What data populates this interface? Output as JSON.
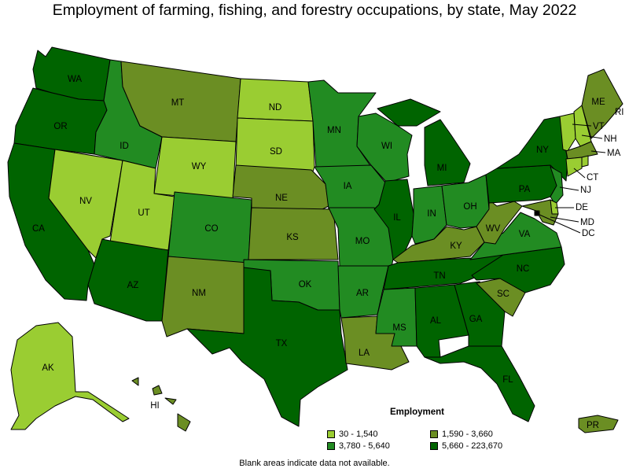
{
  "title": "Employment of farming, fishing, and forestry occupations, by state, May 2022",
  "note": "Blank areas indicate data not available.",
  "legend": {
    "title": "Employment",
    "items": [
      {
        "label": "30 - 1,540",
        "color": "#9acd32"
      },
      {
        "label": "1,590 - 3,660",
        "color": "#6b8e23"
      },
      {
        "label": "3,780 - 5,640",
        "color": "#228b22"
      },
      {
        "label": "5,660 - 223,670",
        "color": "#006400"
      }
    ]
  },
  "states": [
    {
      "abbr": "WA",
      "tier": 3
    },
    {
      "abbr": "OR",
      "tier": 3
    },
    {
      "abbr": "CA",
      "tier": 3
    },
    {
      "abbr": "ID",
      "tier": 2
    },
    {
      "abbr": "NV",
      "tier": 0
    },
    {
      "abbr": "UT",
      "tier": 0
    },
    {
      "abbr": "AZ",
      "tier": 3
    },
    {
      "abbr": "MT",
      "tier": 1
    },
    {
      "abbr": "WY",
      "tier": 0
    },
    {
      "abbr": "CO",
      "tier": 2
    },
    {
      "abbr": "NM",
      "tier": 1
    },
    {
      "abbr": "ND",
      "tier": 0
    },
    {
      "abbr": "SD",
      "tier": 0
    },
    {
      "abbr": "NE",
      "tier": 1
    },
    {
      "abbr": "KS",
      "tier": 1
    },
    {
      "abbr": "OK",
      "tier": 2
    },
    {
      "abbr": "TX",
      "tier": 3
    },
    {
      "abbr": "MN",
      "tier": 2
    },
    {
      "abbr": "IA",
      "tier": 2
    },
    {
      "abbr": "MO",
      "tier": 2
    },
    {
      "abbr": "AR",
      "tier": 2
    },
    {
      "abbr": "LA",
      "tier": 1
    },
    {
      "abbr": "WI",
      "tier": 2
    },
    {
      "abbr": "IL",
      "tier": 3
    },
    {
      "abbr": "MI",
      "tier": 3
    },
    {
      "abbr": "IN",
      "tier": 2
    },
    {
      "abbr": "OH",
      "tier": 2
    },
    {
      "abbr": "KY",
      "tier": 1
    },
    {
      "abbr": "TN",
      "tier": 3
    },
    {
      "abbr": "MS",
      "tier": 2
    },
    {
      "abbr": "AL",
      "tier": 3
    },
    {
      "abbr": "GA",
      "tier": 3
    },
    {
      "abbr": "FL",
      "tier": 3
    },
    {
      "abbr": "SC",
      "tier": 1
    },
    {
      "abbr": "NC",
      "tier": 3
    },
    {
      "abbr": "VA",
      "tier": 2
    },
    {
      "abbr": "WV",
      "tier": 1
    },
    {
      "abbr": "PA",
      "tier": 3
    },
    {
      "abbr": "NY",
      "tier": 3
    },
    {
      "abbr": "ME",
      "tier": 1
    },
    {
      "abbr": "VT",
      "tier": 0
    },
    {
      "abbr": "NH",
      "tier": 0
    },
    {
      "abbr": "MA",
      "tier": 1
    },
    {
      "abbr": "CT",
      "tier": 0
    },
    {
      "abbr": "RI",
      "tier": 0
    },
    {
      "abbr": "NJ",
      "tier": 2
    },
    {
      "abbr": "DE",
      "tier": 0
    },
    {
      "abbr": "MD",
      "tier": 1
    },
    {
      "abbr": "DC",
      "tier": 0
    },
    {
      "abbr": "AK",
      "tier": 0
    },
    {
      "abbr": "HI",
      "tier": 1
    },
    {
      "abbr": "PR",
      "tier": 1
    }
  ]
}
